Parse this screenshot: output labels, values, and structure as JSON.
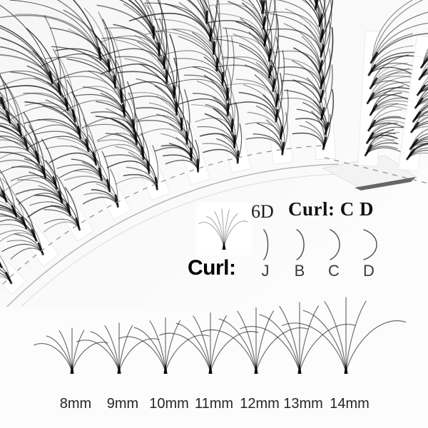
{
  "photo": {
    "description": "Macro photo of 6D volume eyelash extension strips fanned out on a curved lash tray",
    "strip_count": 10,
    "clusters_per_strip": 10
  },
  "spec": {
    "fan_label": "6D",
    "curl_heading": "Curl: C D",
    "curl_row_label": "Curl:",
    "curl_types": [
      {
        "label": "J",
        "depth": 7
      },
      {
        "label": "B",
        "depth": 12
      },
      {
        "label": "C",
        "depth": 16
      },
      {
        "label": "D",
        "depth": 22
      }
    ]
  },
  "lengths": [
    {
      "label": "8mm",
      "mm": 8
    },
    {
      "label": "9mm",
      "mm": 9
    },
    {
      "label": "10mm",
      "mm": 10
    },
    {
      "label": "11mm",
      "mm": 11
    },
    {
      "label": "12mm",
      "mm": 12
    },
    {
      "label": "13mm",
      "mm": 13
    },
    {
      "label": "14mm",
      "mm": 14
    }
  ],
  "colors": {
    "background": "#fcfcfc",
    "lash": "#0f0f0f",
    "tray_solid_line": "#b3b3b3",
    "tray_dashed_line": "#8f8f8f",
    "curl_stroke": "#4a4a4a",
    "fan_stroke": "#2b2b2b",
    "text": "#111111"
  }
}
